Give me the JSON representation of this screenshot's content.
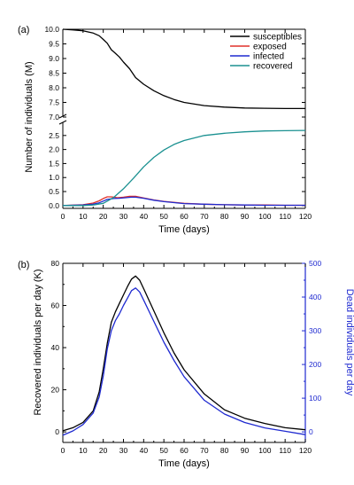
{
  "chart_data": [
    {
      "panel_label": "(a)",
      "type": "line",
      "xlabel": "Time (days)",
      "ylabel": "Number of individuals (M)",
      "xlim": [
        0,
        120
      ],
      "xticks": [
        "0",
        "10",
        "20",
        "30",
        "40",
        "50",
        "60",
        "70",
        "80",
        "90",
        "100",
        "110",
        "120"
      ],
      "axis_break": true,
      "upper_ylim": [
        7.0,
        10.0
      ],
      "upper_yticks": [
        "7.0",
        "7.5",
        "8.0",
        "8.5",
        "9.0",
        "9.5",
        "10.0"
      ],
      "lower_ylim": [
        -0.1,
        3.0
      ],
      "lower_yticks": [
        "0.0",
        "0.5",
        "1.0",
        "1.5",
        "2.0",
        "2.5"
      ],
      "legend_position": "top-right",
      "series": [
        {
          "name": "susceptibles",
          "color": "#000000",
          "segment": "upper",
          "x": [
            0,
            5,
            10,
            15,
            18,
            20,
            22,
            24,
            26,
            28,
            30,
            33,
            36,
            40,
            45,
            50,
            55,
            60,
            70,
            80,
            90,
            100,
            110,
            120
          ],
          "y": [
            10.0,
            9.98,
            9.95,
            9.87,
            9.78,
            9.65,
            9.52,
            9.3,
            9.18,
            9.05,
            8.88,
            8.65,
            8.35,
            8.12,
            7.9,
            7.73,
            7.6,
            7.5,
            7.39,
            7.34,
            7.31,
            7.3,
            7.29,
            7.29
          ]
        },
        {
          "name": "exposed",
          "color": "#e0302a",
          "segment": "lower",
          "x": [
            0,
            10,
            15,
            18,
            20,
            22,
            24,
            27,
            30,
            33,
            36,
            40,
            45,
            50,
            60,
            70,
            80,
            90,
            100,
            110,
            120
          ],
          "y": [
            0.0,
            0.03,
            0.09,
            0.17,
            0.25,
            0.31,
            0.31,
            0.28,
            0.3,
            0.33,
            0.33,
            0.27,
            0.2,
            0.15,
            0.08,
            0.05,
            0.03,
            0.02,
            0.02,
            0.01,
            0.01
          ]
        },
        {
          "name": "infected",
          "color": "#1f2ad0",
          "segment": "lower",
          "x": [
            0,
            10,
            15,
            18,
            20,
            22,
            25,
            28,
            31,
            34,
            36,
            40,
            45,
            50,
            60,
            70,
            80,
            90,
            100,
            110,
            120
          ],
          "y": [
            0.0,
            0.02,
            0.05,
            0.1,
            0.16,
            0.22,
            0.25,
            0.26,
            0.28,
            0.3,
            0.3,
            0.26,
            0.19,
            0.14,
            0.07,
            0.05,
            0.03,
            0.02,
            0.01,
            0.01,
            0.01
          ]
        },
        {
          "name": "recovered",
          "color": "#1b9191",
          "segment": "lower",
          "x": [
            0,
            10,
            15,
            20,
            25,
            30,
            35,
            40,
            45,
            50,
            55,
            60,
            70,
            80,
            90,
            100,
            110,
            120
          ],
          "y": [
            0.0,
            0.0,
            0.02,
            0.08,
            0.28,
            0.6,
            0.98,
            1.38,
            1.72,
            1.98,
            2.18,
            2.32,
            2.5,
            2.58,
            2.63,
            2.66,
            2.67,
            2.68
          ]
        }
      ]
    },
    {
      "panel_label": "(b)",
      "type": "line",
      "xlabel": "Time (days)",
      "ylabel": "Recovered individuals per day (K)",
      "y2label": "Dead individuals per day",
      "y2color": "#1f2ad0",
      "xlim": [
        0,
        120
      ],
      "xticks": [
        "0",
        "10",
        "20",
        "30",
        "40",
        "50",
        "60",
        "70",
        "80",
        "90",
        "100",
        "110",
        "120"
      ],
      "ylim": [
        -5,
        80
      ],
      "yticks": [
        "0",
        "20",
        "40",
        "60",
        "80"
      ],
      "y2lim": [
        -31.25,
        500
      ],
      "y2ticks": [
        "0",
        "100",
        "200",
        "300",
        "400",
        "500"
      ],
      "series": [
        {
          "name": "",
          "axis": "left",
          "color": "#000000",
          "x": [
            0,
            5,
            10,
            15,
            18,
            20,
            22,
            24,
            26,
            28,
            30,
            32,
            34,
            36,
            38,
            40,
            45,
            50,
            55,
            60,
            70,
            80,
            90,
            100,
            110,
            120
          ],
          "y": [
            0.5,
            2.0,
            4.5,
            10.0,
            19.0,
            30.0,
            42.0,
            52.0,
            57.0,
            61.0,
            65.0,
            69.0,
            72.5,
            74.0,
            72.0,
            68.0,
            57.5,
            47.0,
            37.5,
            29.5,
            18.0,
            10.5,
            6.5,
            4.0,
            2.0,
            1.0
          ]
        },
        {
          "name": "",
          "axis": "right",
          "color": "#1f2ad0",
          "x": [
            0,
            5,
            10,
            15,
            18,
            20,
            22,
            24,
            26,
            28,
            30,
            32,
            34,
            36,
            38,
            40,
            45,
            50,
            55,
            60,
            70,
            80,
            90,
            100,
            110,
            120
          ],
          "y": [
            -10,
            3,
            22,
            56,
            104,
            166,
            246,
            300,
            330,
            350,
            375,
            397,
            419,
            427,
            415,
            391,
            328,
            266,
            212,
            164,
            94,
            53,
            28,
            12,
            2,
            -8
          ]
        }
      ]
    }
  ]
}
